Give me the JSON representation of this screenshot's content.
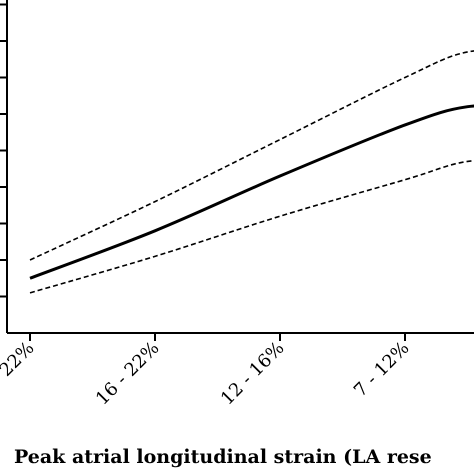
{
  "chart_data": {
    "type": "line",
    "xlabel": "Peak atrial longitudinal strain (LA rese",
    "categories": [
      "22%",
      "16 - 22%",
      "12 - 16%",
      "7 - 12%"
    ],
    "x": [
      0,
      1,
      2,
      3,
      3.5,
      4
    ],
    "ylim": [
      0,
      9
    ],
    "y_ticks": [
      1,
      2,
      3,
      4,
      5,
      6,
      7,
      8,
      9
    ],
    "grid": false,
    "legend": "none",
    "series": [
      {
        "role": "estimate",
        "style": "solid",
        "values": [
          1.5,
          2.8,
          4.3,
          5.7,
          6.2,
          6.2
        ]
      },
      {
        "role": "upper-ci",
        "style": "dashed",
        "values": [
          2.0,
          3.6,
          5.3,
          7.0,
          7.7,
          7.7
        ]
      },
      {
        "role": "lower-ci",
        "style": "dashed",
        "values": [
          1.1,
          2.1,
          3.2,
          4.2,
          4.7,
          4.7
        ]
      }
    ],
    "colors": {
      "line": "#000000",
      "axis": "#000000",
      "background": "#ffffff"
    }
  }
}
